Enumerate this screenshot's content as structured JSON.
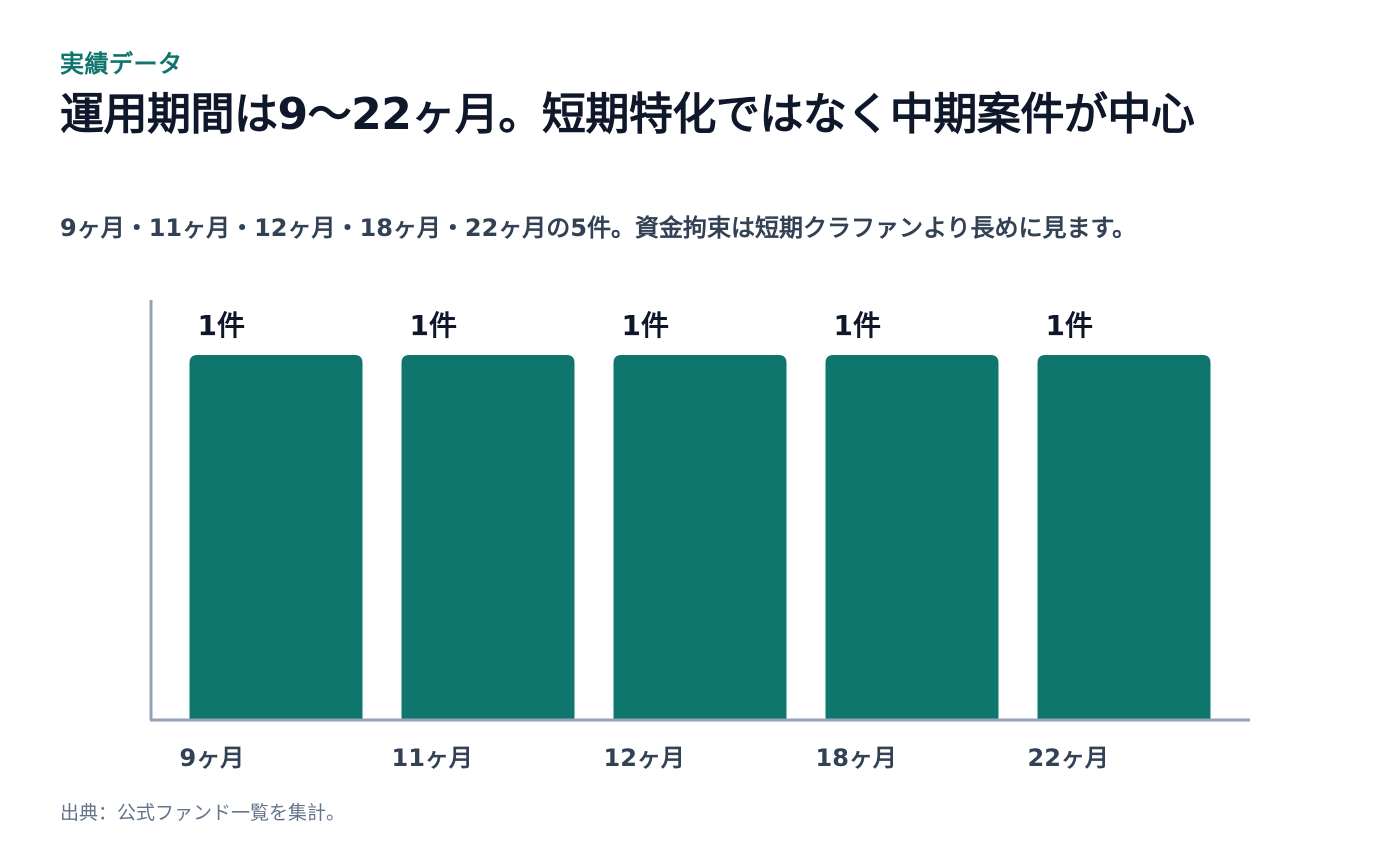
{
  "header": {
    "eyebrow": "実績データ",
    "title": "運用期間は9〜22ヶ月。短期特化ではなく中期案件が中心",
    "subtitle": "9ヶ月・11ヶ月・12ヶ月・18ヶ月・22ヶ月の5件。資金拘束は短期クラファンより長めに見ます。"
  },
  "chart_data": {
    "type": "bar",
    "categories": [
      "9ヶ月",
      "11ヶ月",
      "12ヶ月",
      "18ヶ月",
      "22ヶ月"
    ],
    "values": [
      1,
      1,
      1,
      1,
      1
    ],
    "data_labels": [
      "1件",
      "1件",
      "1件",
      "1件",
      "1件"
    ],
    "ylim": [
      0,
      1
    ],
    "grid": false,
    "bar_color": "#0f766e",
    "axis_color": "#94a3b8"
  },
  "footer": {
    "source": "出典：公式ファンド一覧を集計。"
  }
}
